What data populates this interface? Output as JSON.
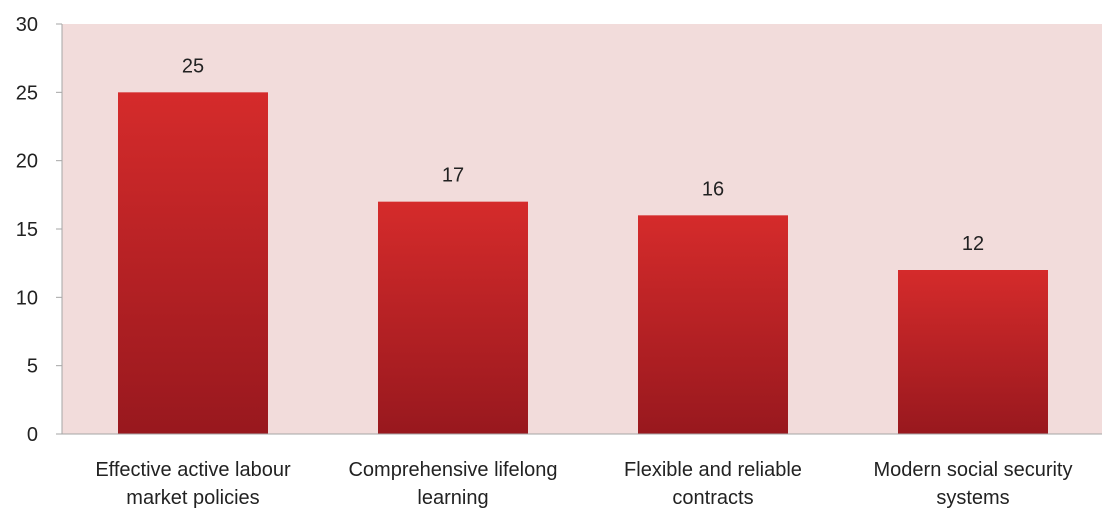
{
  "chart_data": {
    "type": "bar",
    "categories": [
      [
        "Effective active labour",
        "market policies"
      ],
      [
        "Comprehensive lifelong",
        "learning"
      ],
      [
        "Flexible and reliable",
        "contracts"
      ],
      [
        "Modern social security",
        "systems"
      ]
    ],
    "values": [
      25,
      17,
      16,
      12
    ],
    "data_labels": [
      "25",
      "17",
      "16",
      "12"
    ],
    "ylim": [
      0,
      30
    ],
    "yticks": [
      0,
      5,
      10,
      15,
      20,
      25,
      30
    ],
    "title": "",
    "xlabel": "",
    "ylabel": "",
    "grid": false,
    "legend": "none",
    "colors": {
      "plot_background": "#f2dcdb",
      "bar_top": "#d52b2b",
      "bar_bottom": "#98181e",
      "axis": "#a6a6a6"
    }
  }
}
